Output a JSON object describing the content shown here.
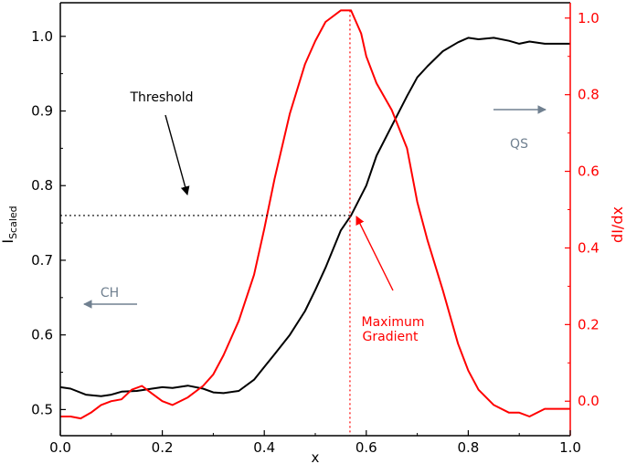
{
  "chart_data": {
    "type": "line",
    "xlabel": "x",
    "ylabel_left": {
      "main": "I",
      "subscript": "Scaled"
    },
    "ylabel_right": "dI/dx",
    "xlim": [
      0.0,
      1.0
    ],
    "ylim_left": [
      0.465,
      1.045
    ],
    "ylim_right": [
      -0.09,
      1.04
    ],
    "x_ticks": [
      "0.0",
      "0.2",
      "0.4",
      "0.6",
      "0.8",
      "1.0"
    ],
    "y_left_ticks": [
      "0.5",
      "0.6",
      "0.7",
      "0.8",
      "0.9",
      "1.0"
    ],
    "y_right_ticks": [
      "0.0",
      "0.2",
      "0.4",
      "0.6",
      "0.8",
      "1.0"
    ],
    "grid": false,
    "series": [
      {
        "axis": "left",
        "color": "#000000",
        "x": [
          0.0,
          0.02,
          0.05,
          0.08,
          0.1,
          0.12,
          0.15,
          0.18,
          0.2,
          0.22,
          0.25,
          0.28,
          0.3,
          0.32,
          0.35,
          0.38,
          0.4,
          0.42,
          0.45,
          0.48,
          0.5,
          0.52,
          0.55,
          0.57,
          0.6,
          0.62,
          0.65,
          0.68,
          0.7,
          0.72,
          0.75,
          0.78,
          0.8,
          0.82,
          0.85,
          0.88,
          0.9,
          0.92,
          0.95,
          0.98,
          1.0
        ],
        "y": [
          0.53,
          0.528,
          0.52,
          0.518,
          0.52,
          0.524,
          0.525,
          0.528,
          0.53,
          0.529,
          0.532,
          0.528,
          0.523,
          0.522,
          0.525,
          0.54,
          0.557,
          0.574,
          0.6,
          0.632,
          0.66,
          0.69,
          0.74,
          0.76,
          0.8,
          0.84,
          0.88,
          0.92,
          0.945,
          0.96,
          0.98,
          0.992,
          0.998,
          0.996,
          0.998,
          0.994,
          0.99,
          0.993,
          0.99,
          0.99,
          0.99
        ]
      },
      {
        "axis": "right",
        "color": "#ff0000",
        "x": [
          0.0,
          0.02,
          0.04,
          0.06,
          0.08,
          0.1,
          0.12,
          0.14,
          0.16,
          0.18,
          0.2,
          0.22,
          0.25,
          0.28,
          0.3,
          0.32,
          0.35,
          0.38,
          0.4,
          0.42,
          0.45,
          0.48,
          0.5,
          0.52,
          0.55,
          0.57,
          0.59,
          0.6,
          0.62,
          0.65,
          0.68,
          0.7,
          0.72,
          0.75,
          0.78,
          0.8,
          0.82,
          0.85,
          0.88,
          0.9,
          0.92,
          0.95,
          0.97,
          1.0
        ],
        "y": [
          -0.04,
          -0.04,
          -0.045,
          -0.03,
          -0.01,
          0.0,
          0.005,
          0.03,
          0.04,
          0.02,
          0.0,
          -0.01,
          0.01,
          0.04,
          0.07,
          0.12,
          0.21,
          0.33,
          0.45,
          0.58,
          0.75,
          0.88,
          0.94,
          0.99,
          1.02,
          1.02,
          0.96,
          0.9,
          0.83,
          0.76,
          0.66,
          0.52,
          0.42,
          0.29,
          0.15,
          0.08,
          0.03,
          -0.01,
          -0.03,
          -0.03,
          -0.04,
          -0.02,
          -0.02,
          -0.02
        ]
      }
    ],
    "threshold_y": 0.76,
    "max_gradient_x": 0.568,
    "annotations": {
      "threshold": {
        "text": "Threshold"
      },
      "max_gradient": {
        "line1": "Maximum",
        "line2": "Gradient"
      },
      "ch": {
        "text": "CH"
      },
      "qs": {
        "text": "QS"
      }
    },
    "colors": {
      "left_axis": "#000000",
      "right_axis": "#ff0000",
      "gray_annotation": "#708090"
    }
  }
}
